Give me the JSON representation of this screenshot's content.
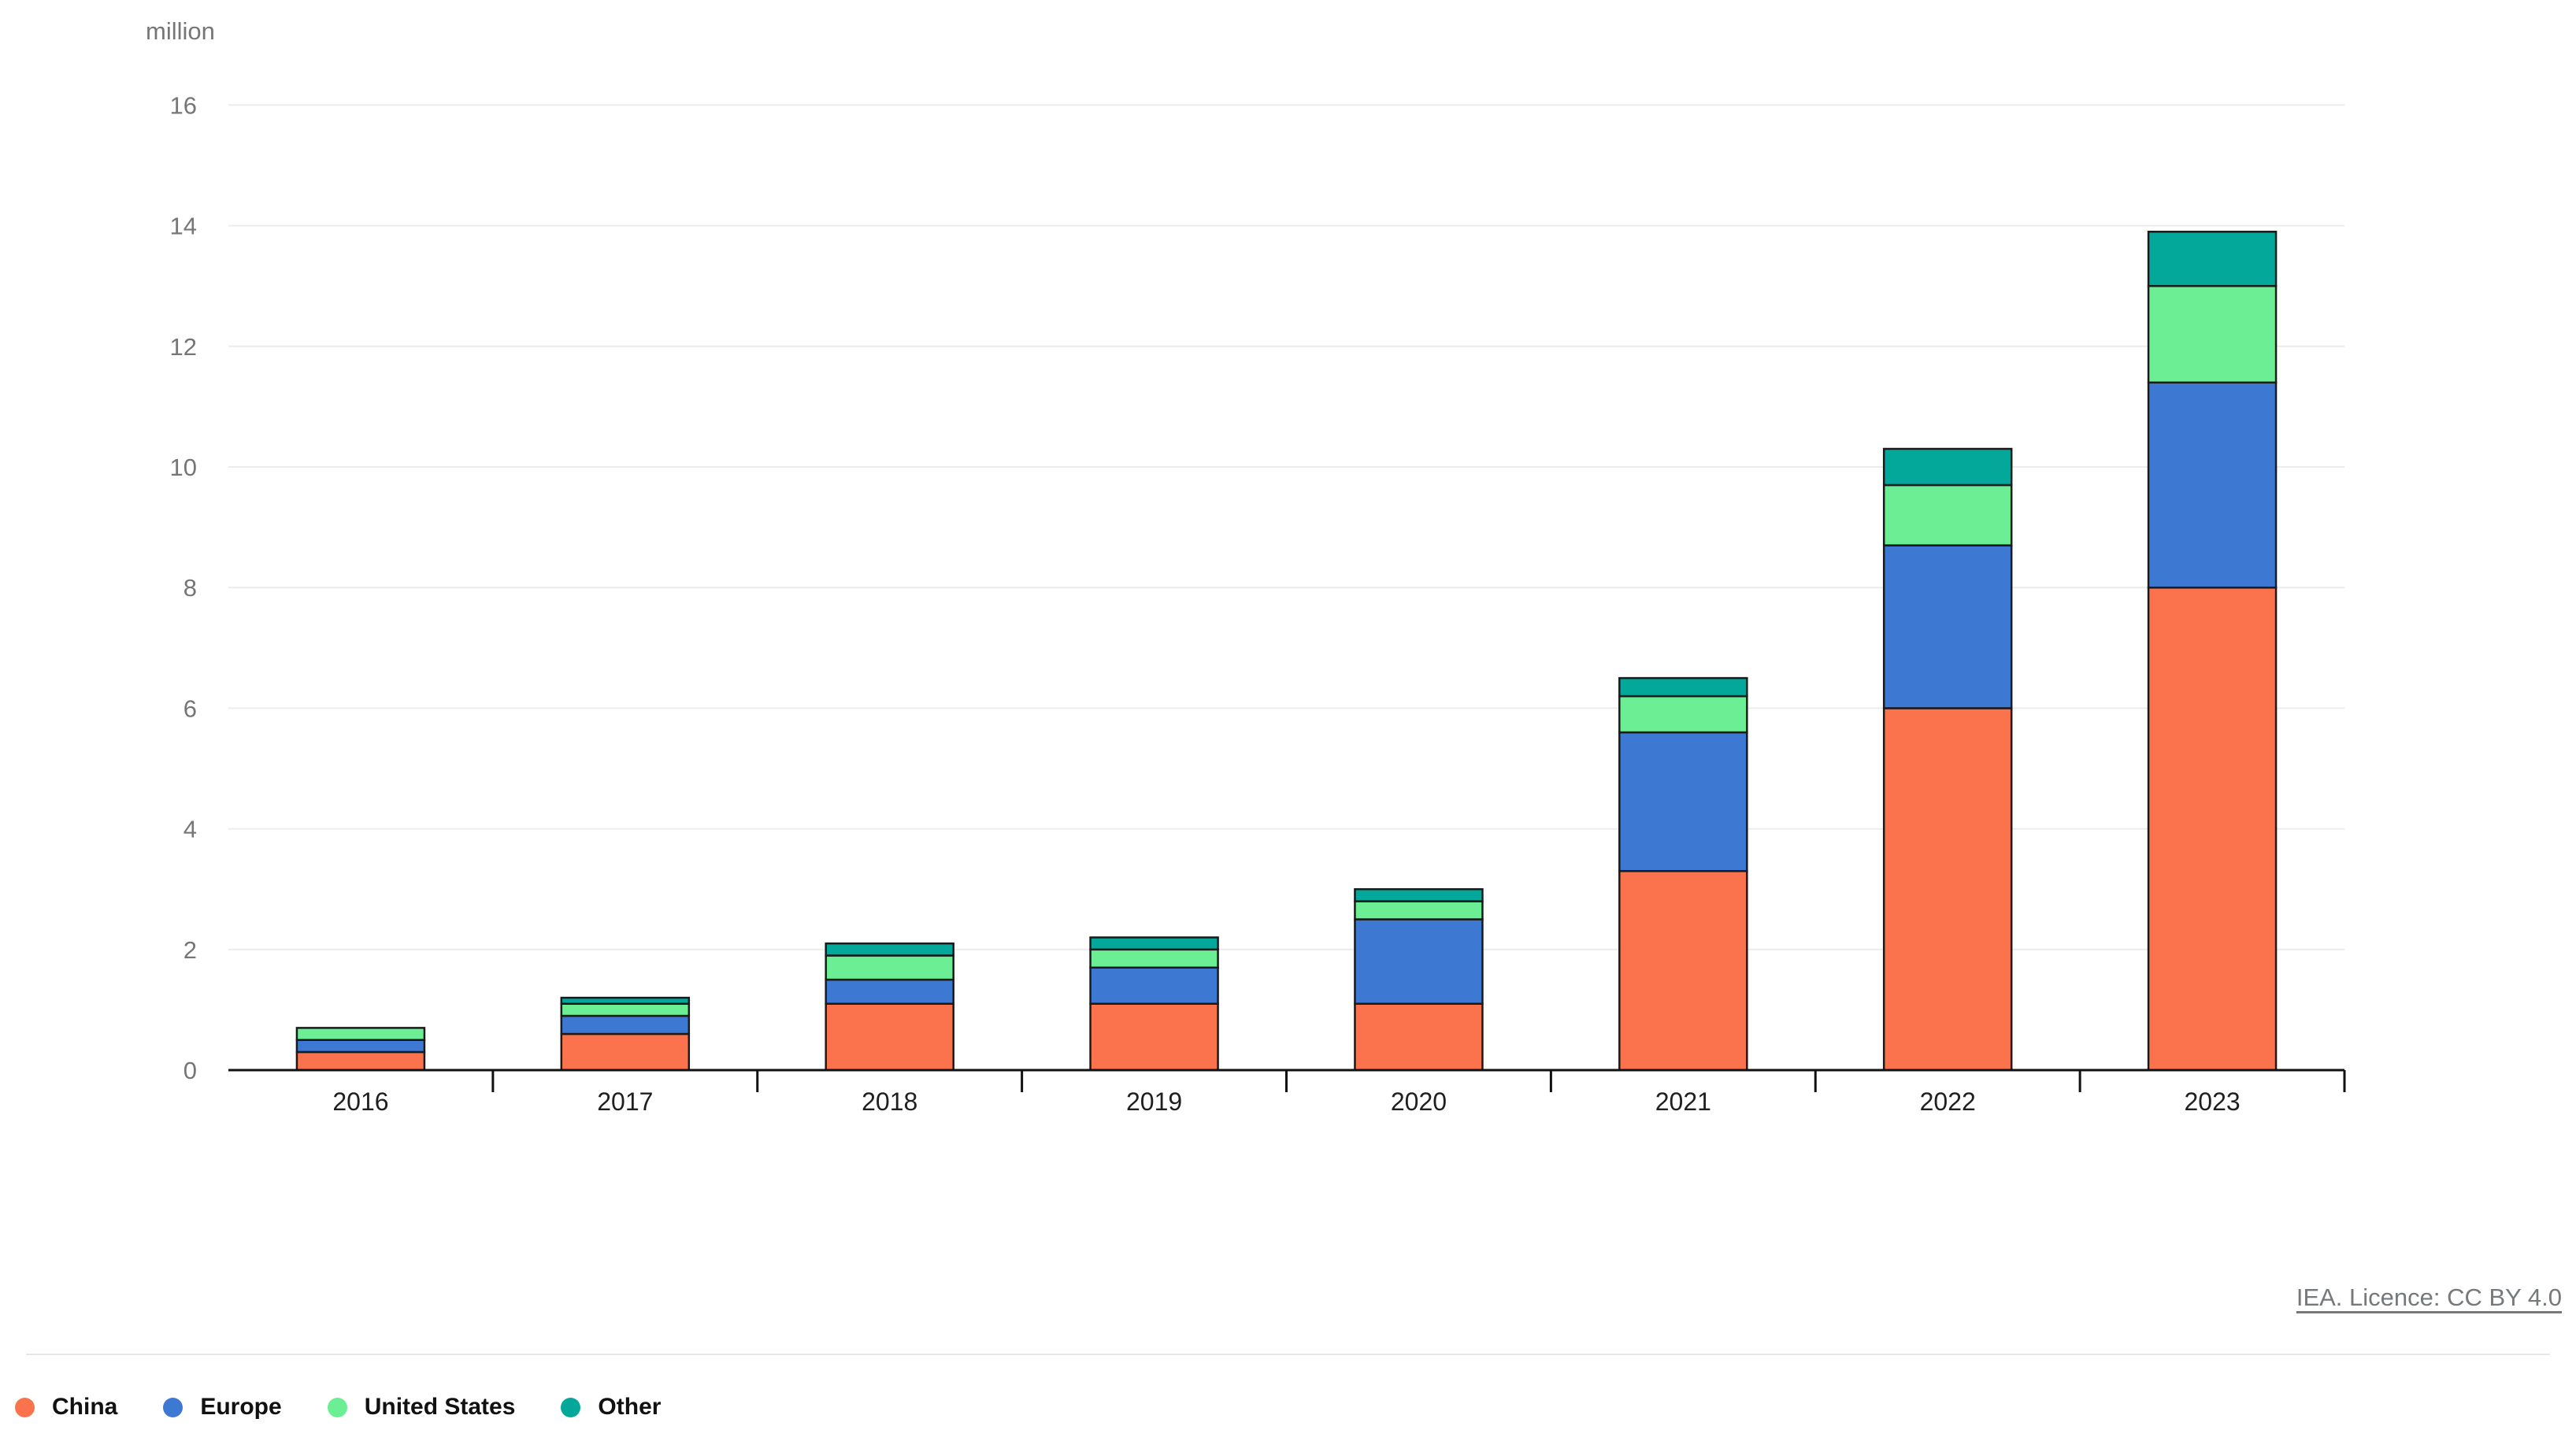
{
  "chart_data": {
    "type": "bar",
    "stacked": true,
    "unit_label": "million",
    "categories": [
      "2016",
      "2017",
      "2018",
      "2019",
      "2020",
      "2021",
      "2022",
      "2023"
    ],
    "series": [
      {
        "name": "China",
        "color": "#fa734c",
        "values": [
          0.3,
          0.6,
          1.1,
          1.1,
          1.1,
          3.3,
          6.0,
          8.0
        ]
      },
      {
        "name": "Europe",
        "color": "#3d78d3",
        "values": [
          0.2,
          0.3,
          0.4,
          0.6,
          1.4,
          2.3,
          2.7,
          3.4
        ]
      },
      {
        "name": "United States",
        "color": "#6cee95",
        "values": [
          0.2,
          0.2,
          0.4,
          0.3,
          0.3,
          0.6,
          1.0,
          1.6
        ]
      },
      {
        "name": "Other",
        "color": "#04a89b",
        "values": [
          0.0,
          0.1,
          0.2,
          0.2,
          0.2,
          0.3,
          0.6,
          0.9
        ]
      }
    ],
    "totals": [
      0.7,
      1.2,
      2.1,
      2.2,
      3.0,
      6.5,
      10.3,
      13.9
    ],
    "ylim": [
      0,
      16
    ],
    "y_ticks": [
      0,
      2,
      4,
      6,
      8,
      10,
      12,
      14,
      16
    ],
    "grid": true,
    "legend_position": "bottom"
  },
  "attribution": {
    "text": "IEA. Licence: CC BY 4.0"
  },
  "colors": {
    "background": "#ffffff",
    "gridline": "#ececec",
    "axis": "#111111",
    "tick_label": "#767676",
    "category_label": "#1f1f1f",
    "bar_border": "#1a1a1a",
    "divider": "#e7e7e7",
    "link": "#75797c",
    "legend_text": "#111111"
  }
}
